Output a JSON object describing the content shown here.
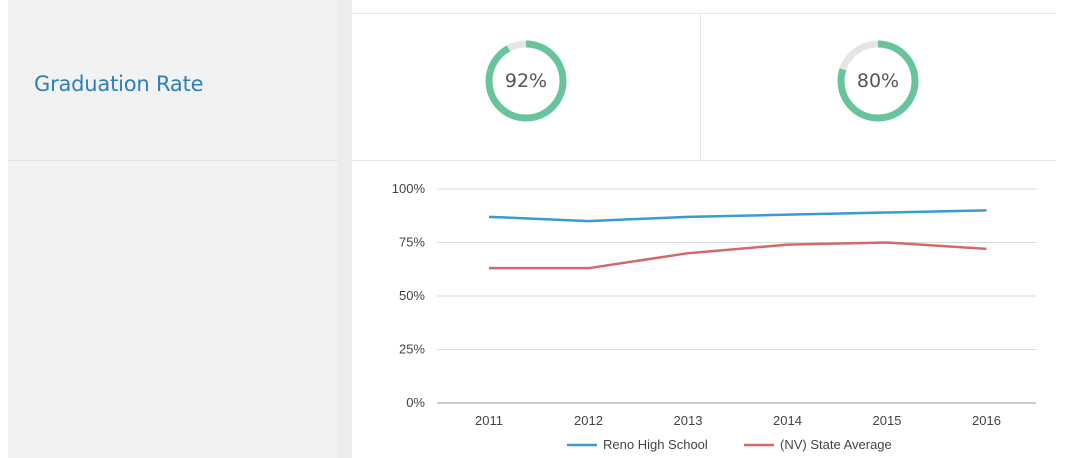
{
  "metric": {
    "label": "Graduation Rate"
  },
  "comparisons": [
    {
      "value_text": "92%",
      "value": 0.92
    },
    {
      "value_text": "80%",
      "value": 0.8
    }
  ],
  "colors": {
    "label": "#2d7fb6",
    "ring": "#67c49b",
    "ring_track": "#e5e5e5",
    "series_1": "#3b9ad0",
    "series_2": "#d26a6a"
  },
  "chart_data": {
    "type": "line",
    "x": [
      "2011",
      "2012",
      "2013",
      "2014",
      "2015",
      "2016"
    ],
    "series": [
      {
        "name": "Reno High School",
        "values": [
          87,
          85,
          87,
          88,
          89,
          90
        ]
      },
      {
        "name": "(NV) State Average",
        "values": [
          63,
          63,
          70,
          74,
          75,
          72
        ]
      }
    ],
    "yticks": [
      "0%",
      "25%",
      "50%",
      "75%",
      "100%"
    ],
    "ylim": [
      0,
      100
    ],
    "grid": true,
    "legend": "bottom"
  }
}
